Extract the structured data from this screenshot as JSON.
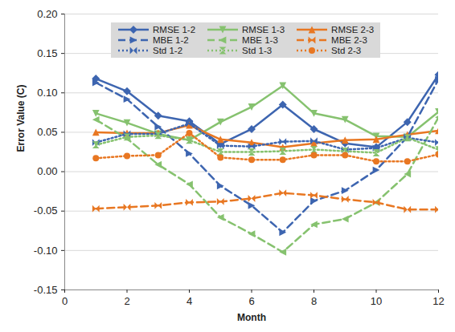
{
  "chart_data": {
    "type": "line",
    "x_label": "Month",
    "y_label": "Error Value (C)",
    "x": [
      1,
      2,
      3,
      4,
      5,
      6,
      7,
      8,
      9,
      10,
      11,
      12
    ],
    "xlim": [
      0,
      12
    ],
    "xticks": [
      0,
      2,
      4,
      6,
      8,
      10,
      12
    ],
    "ylim": [
      -0.15,
      0.2
    ],
    "yticks": [
      {
        "value": -0.15,
        "label": "-0.15"
      },
      {
        "value": -0.1,
        "label": "-0.10"
      },
      {
        "value": -0.05,
        "label": "-0.05"
      },
      {
        "value": 0,
        "label": "0.00"
      },
      {
        "value": 0.05,
        "label": "0.05"
      },
      {
        "value": 0.1,
        "label": "0.10"
      },
      {
        "value": 0.15,
        "label": "0.15"
      },
      {
        "value": 0.2,
        "label": "0.20"
      }
    ],
    "grid": true,
    "legend": "top",
    "series": [
      {
        "name": "RMSE 1-2",
        "color": "#3d65b0",
        "line_style": "solid",
        "marker": "diamond",
        "values": [
          0.118,
          0.102,
          0.071,
          0.064,
          0.035,
          0.054,
          0.085,
          0.054,
          0.036,
          0.031,
          0.063,
          0.123
        ]
      },
      {
        "name": "RMSE 1-3",
        "color": "#86c26f",
        "line_style": "solid",
        "marker": "triangle-down",
        "values": [
          0.074,
          0.062,
          0.048,
          0.04,
          0.063,
          0.082,
          0.109,
          0.074,
          0.066,
          0.045,
          0.044,
          0.076
        ]
      },
      {
        "name": "RMSE 2-3",
        "color": "#e87722",
        "line_style": "solid",
        "marker": "triangle-up",
        "values": [
          0.05,
          0.049,
          0.049,
          0.059,
          0.041,
          0.037,
          0.031,
          0.036,
          0.04,
          0.041,
          0.047,
          0.052
        ]
      },
      {
        "name": "MBE 1-2",
        "color": "#3d65b0",
        "line_style": "dashed",
        "marker": "triangle-right",
        "values": [
          0.113,
          0.092,
          0.057,
          0.023,
          -0.018,
          -0.043,
          -0.077,
          -0.037,
          -0.024,
          0.002,
          0.044,
          0.117
        ]
      },
      {
        "name": "MBE 1-3",
        "color": "#86c26f",
        "line_style": "dashed",
        "marker": "triangle-left",
        "values": [
          0.066,
          0.042,
          0.009,
          -0.016,
          -0.058,
          -0.079,
          -0.102,
          -0.067,
          -0.06,
          -0.039,
          -0.003,
          0.069
        ]
      },
      {
        "name": "MBE 2-3",
        "color": "#e87722",
        "line_style": "dashed",
        "marker": "bowtie",
        "values": [
          -0.047,
          -0.045,
          -0.043,
          -0.039,
          -0.038,
          -0.034,
          -0.027,
          -0.03,
          -0.035,
          -0.039,
          -0.048,
          -0.048
        ]
      },
      {
        "name": "Std 1-2",
        "color": "#3d65b0",
        "line_style": "dotted",
        "marker": "bowtie",
        "values": [
          0.037,
          0.048,
          0.048,
          0.061,
          0.033,
          0.032,
          0.038,
          0.039,
          0.028,
          0.03,
          0.043,
          0.037
        ]
      },
      {
        "name": "Std 1-3",
        "color": "#86c26f",
        "line_style": "dotted",
        "marker": "hourglass",
        "values": [
          0.034,
          0.044,
          0.046,
          0.04,
          0.025,
          0.025,
          0.026,
          0.028,
          0.026,
          0.024,
          0.043,
          0.028
        ]
      },
      {
        "name": "Std 2-3",
        "color": "#e87722",
        "line_style": "dotted",
        "marker": "circle",
        "values": [
          0.017,
          0.02,
          0.021,
          0.049,
          0.018,
          0.015,
          0.015,
          0.021,
          0.021,
          0.013,
          0.013,
          0.022
        ]
      }
    ]
  }
}
